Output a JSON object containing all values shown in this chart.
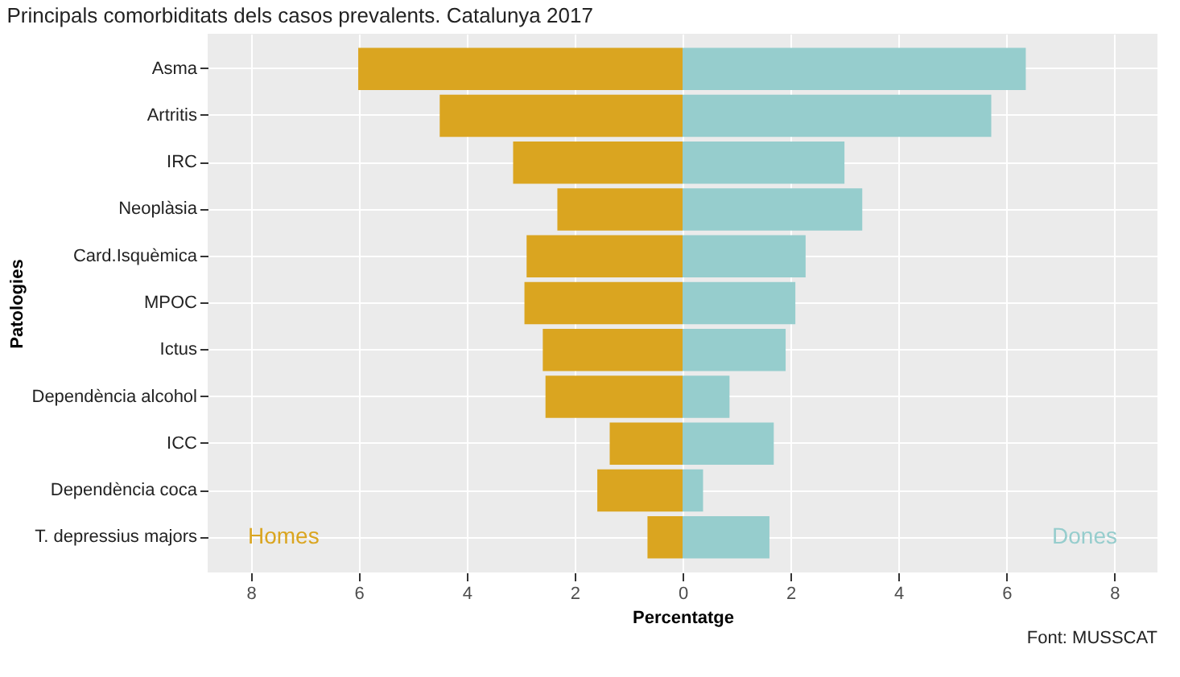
{
  "chart_data": {
    "type": "bar",
    "orientation": "horizontal",
    "title": "Principals comorbiditats dels casos prevalents. Catalunya 2017",
    "xlabel": "Percentatge",
    "ylabel": "Patologies",
    "categories": [
      "Asma",
      "Artritis",
      "IRC",
      "Neoplàsia",
      "Card.Isquèmica",
      "MPOC",
      "Ictus",
      "Dependència alcohol",
      "ICC",
      "Dependència coca",
      "T. depressius majors"
    ],
    "series": [
      {
        "name": "Homes",
        "color": "#daa520",
        "values": [
          -6.01,
          -4.5,
          -3.14,
          -2.32,
          -2.89,
          -2.93,
          -2.59,
          -2.54,
          -1.35,
          -1.58,
          -0.65
        ]
      },
      {
        "name": "Dones",
        "color": "#96cdcd",
        "values": [
          6.36,
          5.72,
          3.0,
          3.33,
          2.28,
          2.09,
          1.91,
          0.87,
          1.69,
          0.38,
          1.61
        ]
      }
    ],
    "xlim": [
      -8.8,
      8.8
    ],
    "xticks": [
      {
        "value": -8,
        "label": "8"
      },
      {
        "value": -6,
        "label": "6"
      },
      {
        "value": -4,
        "label": "4"
      },
      {
        "value": -2,
        "label": "2"
      },
      0,
      2,
      4,
      6,
      8
    ],
    "grid": true,
    "stacked": true,
    "annotations": [
      "Font: MUSSCAT"
    ]
  }
}
